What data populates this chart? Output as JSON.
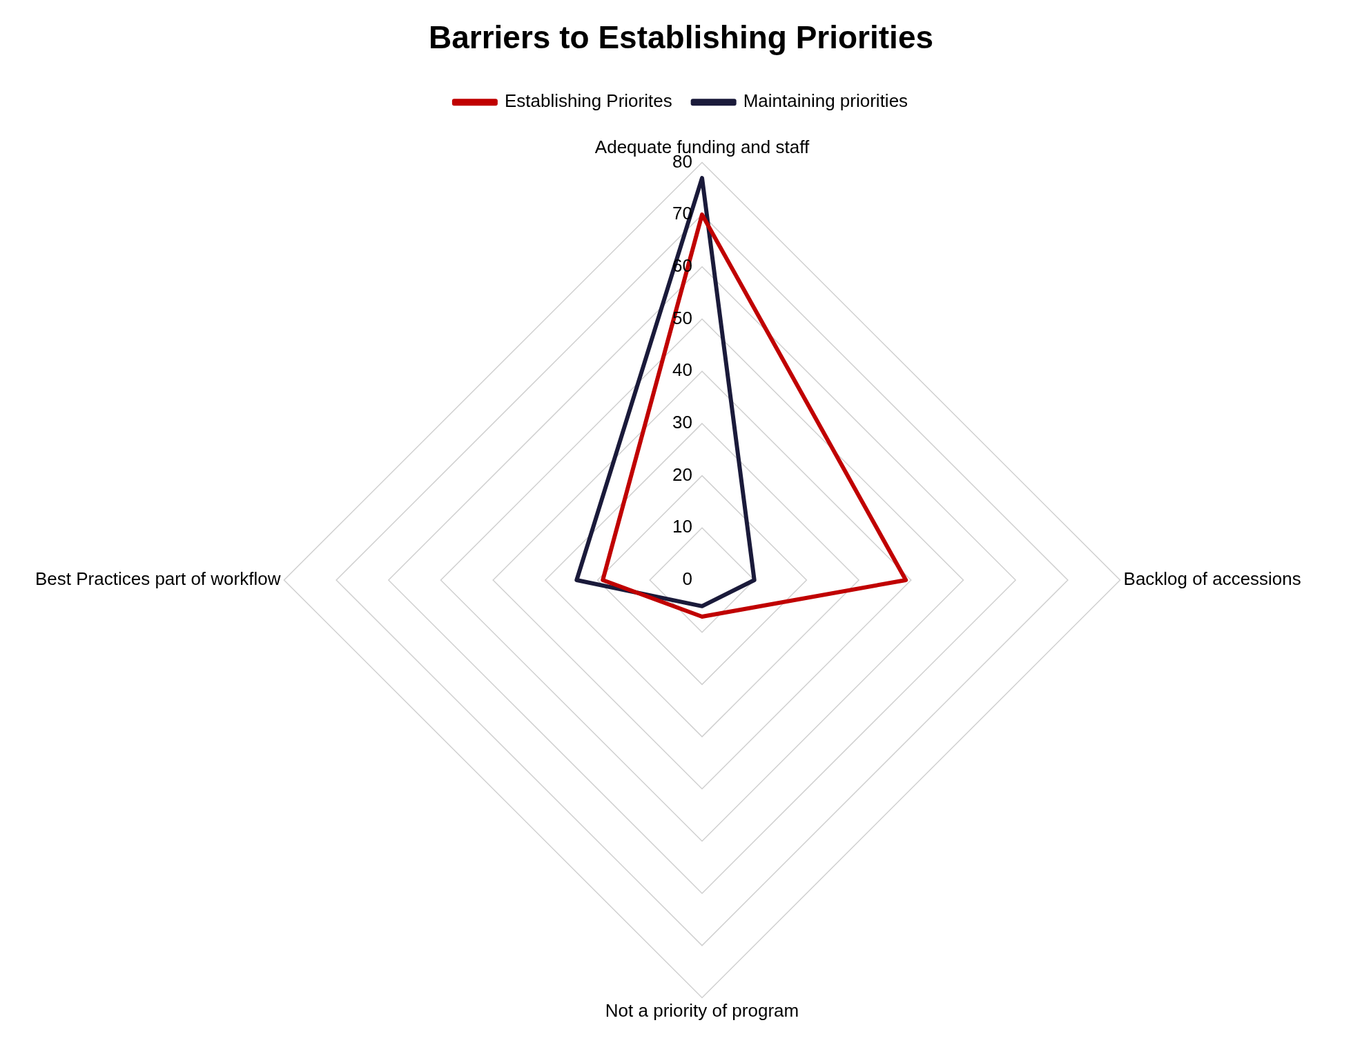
{
  "chart_data": {
    "type": "radar",
    "title": "Barriers to Establishing Priorities",
    "categories": [
      "Adequate funding and staff",
      "Backlog of accessions",
      "Not a priority of program",
      "Best Practices part of workflow"
    ],
    "series": [
      {
        "name": "Establishing Priorites",
        "color": "#c00000",
        "values": [
          70,
          39,
          7,
          19
        ]
      },
      {
        "name": "Maintaining priorities",
        "color": "#1a1a3a",
        "values": [
          77,
          10,
          5,
          24
        ]
      }
    ],
    "ylim": [
      0,
      80
    ],
    "yticks": [
      0,
      10,
      20,
      30,
      40,
      50,
      60,
      70,
      80
    ],
    "grid": true,
    "legend": "top",
    "marker": "none"
  }
}
